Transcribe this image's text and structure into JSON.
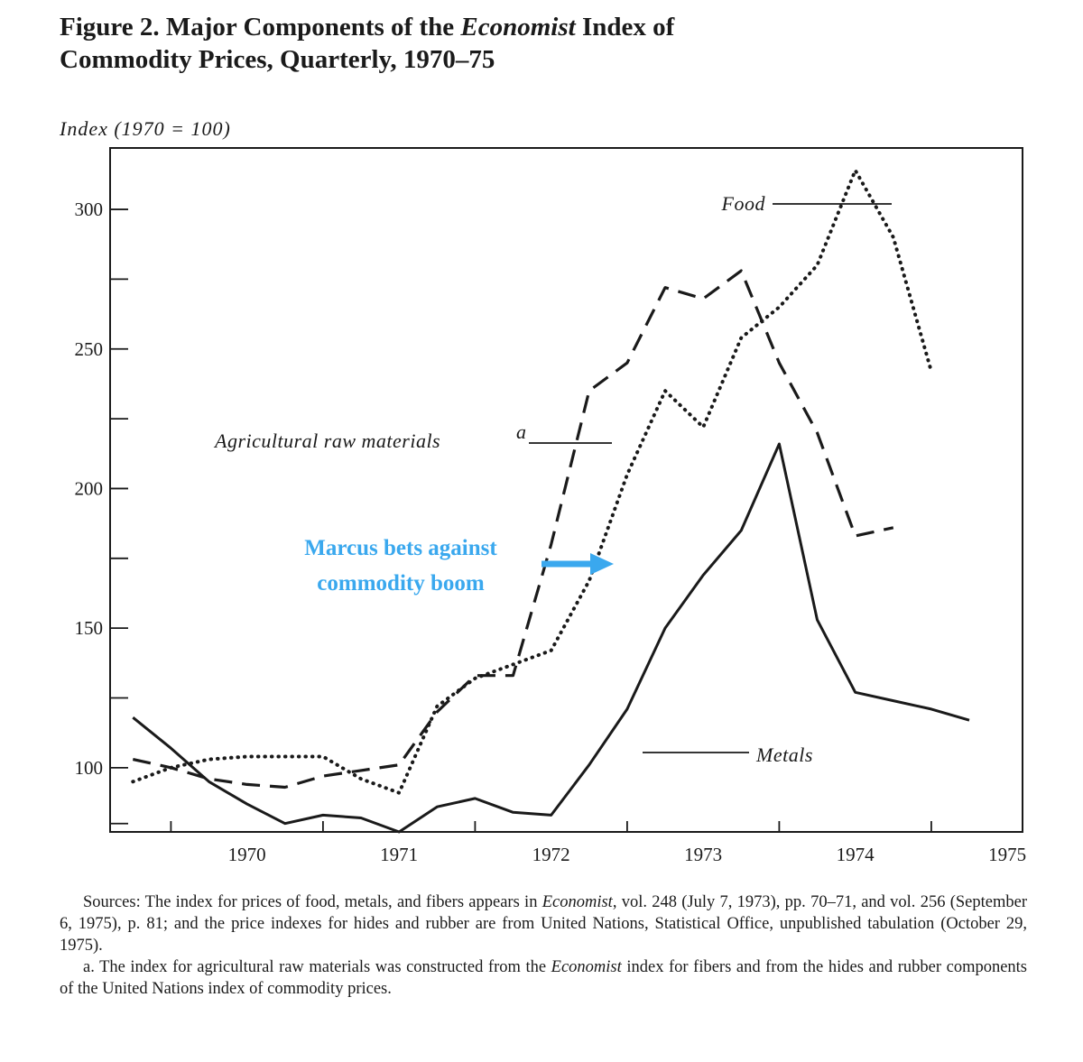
{
  "figure": {
    "title_part1": "Figure 2.  Major Components of the ",
    "title_em": "Economist",
    "title_part2": " Index of",
    "title_line2": "Commodity Prices, Quarterly, 1970–75",
    "y_axis_label": "Index (1970 = 100)"
  },
  "chart_data": {
    "type": "line",
    "title": "Major Components of the Economist Index of Commodity Prices, Quarterly, 1970–75",
    "ylabel": "Index (1970 = 100)",
    "xlabel": "",
    "ylim": [
      77,
      322
    ],
    "xlim": [
      1969.6,
      1975.6
    ],
    "x_ticks": [
      1970,
      1971,
      1972,
      1973,
      1974,
      1975
    ],
    "y_ticks": [
      100,
      150,
      200,
      250,
      300
    ],
    "x": [
      1969.75,
      1970.0,
      1970.25,
      1970.5,
      1970.75,
      1971.0,
      1971.25,
      1971.5,
      1971.75,
      1972.0,
      1972.25,
      1972.5,
      1972.75,
      1973.0,
      1973.25,
      1973.5,
      1973.75,
      1974.0,
      1974.25,
      1974.5,
      1974.75,
      1975.0,
      1975.25
    ],
    "series": [
      {
        "name": "Food",
        "style": "dotted",
        "values": [
          95,
          100,
          103,
          104,
          104,
          104,
          96,
          91,
          122,
          132,
          137,
          142,
          167,
          205,
          235,
          222,
          254,
          265,
          280,
          314,
          290,
          242,
          null
        ]
      },
      {
        "name": "Agricultural raw materialsᵃ",
        "style": "dashed",
        "values": [
          103,
          100,
          96,
          94,
          93,
          97,
          99,
          101,
          120,
          133,
          133,
          180,
          235,
          245,
          272,
          268,
          278,
          245,
          220,
          183,
          186,
          null,
          null
        ]
      },
      {
        "name": "Metals",
        "style": "solid",
        "values": [
          118,
          107,
          95,
          87,
          80,
          83,
          82,
          77,
          86,
          89,
          84,
          83,
          101,
          121,
          150,
          169,
          185,
          216,
          153,
          127,
          124,
          121,
          117
        ]
      }
    ],
    "series_labels": {
      "food": "Food",
      "agricultural": "Agricultural raw materials",
      "agricultural_footnote_mark": "a",
      "metals": "Metals"
    },
    "annotation": {
      "line1": "Marcus bets against",
      "line2": "commodity boom",
      "color": "#3aa8ee",
      "points_to_x": 1972.5,
      "points_to_y": 165
    },
    "grid": false,
    "legend": "inline labels"
  },
  "sources": {
    "label": "Sources",
    "text_a": ": The index for prices of food, metals, and fibers appears in ",
    "em1": "Economist",
    "text_b": ", vol. 248 (July 7, 1973), pp. 70–71, and vol. 256 (September 6, 1975), p. 81; and the price indexes for hides and rubber are from United Nations, Statistical Office, unpublished tabulation (October 29, 1975).",
    "note_a_prefix": "a. The index for agricultural raw materials was constructed from the ",
    "note_a_em": "Economist",
    "note_a_suffix": " index for fibers and from the hides and rubber components of the United Nations index of commodity prices."
  }
}
